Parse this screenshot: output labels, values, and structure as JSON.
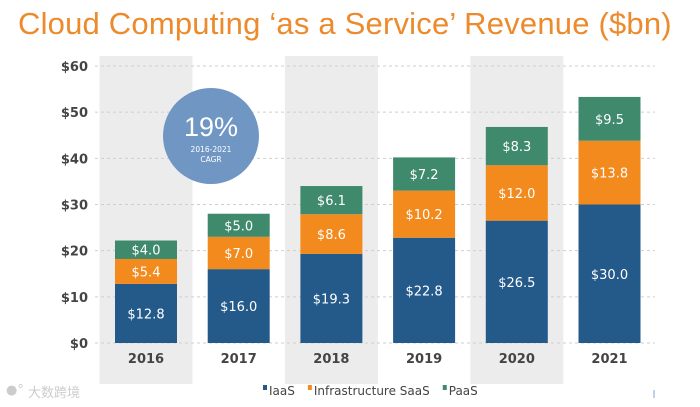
{
  "chart_data": {
    "type": "bar",
    "stacked": true,
    "title": "Cloud Computing ‘as a Service’ Revenue ($bn)",
    "categories": [
      "2016",
      "2017",
      "2018",
      "2019",
      "2020",
      "2021"
    ],
    "series": [
      {
        "name": "IaaS",
        "color": "#245a8a",
        "values": [
          12.8,
          16.0,
          19.3,
          22.8,
          26.5,
          30.0
        ],
        "labels": [
          "$12.8",
          "$16.0",
          "$19.3",
          "$22.8",
          "$26.5",
          "$30.0"
        ]
      },
      {
        "name": "Infrastructure SaaS",
        "color": "#f28a1e",
        "values": [
          5.4,
          7.0,
          8.6,
          10.2,
          12.0,
          13.8
        ],
        "labels": [
          "$5.4",
          "$7.0",
          "$8.6",
          "$10.2",
          "$12.0",
          "$13.8"
        ]
      },
      {
        "name": "PaaS",
        "color": "#3f8a6c",
        "values": [
          4.0,
          5.0,
          6.1,
          7.2,
          8.3,
          9.5
        ],
        "labels": [
          "$4.0",
          "$5.0",
          "$6.1",
          "$7.2",
          "$8.3",
          "$9.5"
        ]
      }
    ],
    "yticks": [
      0,
      10,
      20,
      30,
      40,
      50,
      60
    ],
    "ytick_labels": [
      "$0",
      "$10",
      "$20",
      "$30",
      "$40",
      "$50",
      "$60"
    ],
    "ylim": [
      0,
      60
    ],
    "xlabel": "",
    "ylabel": "",
    "grid": true,
    "legend_position": "bottom",
    "annotation": {
      "value": "19%",
      "line1": "2016-2021",
      "line2": "CAGR",
      "color": "#7096c4"
    }
  },
  "watermark": "大数跨境"
}
